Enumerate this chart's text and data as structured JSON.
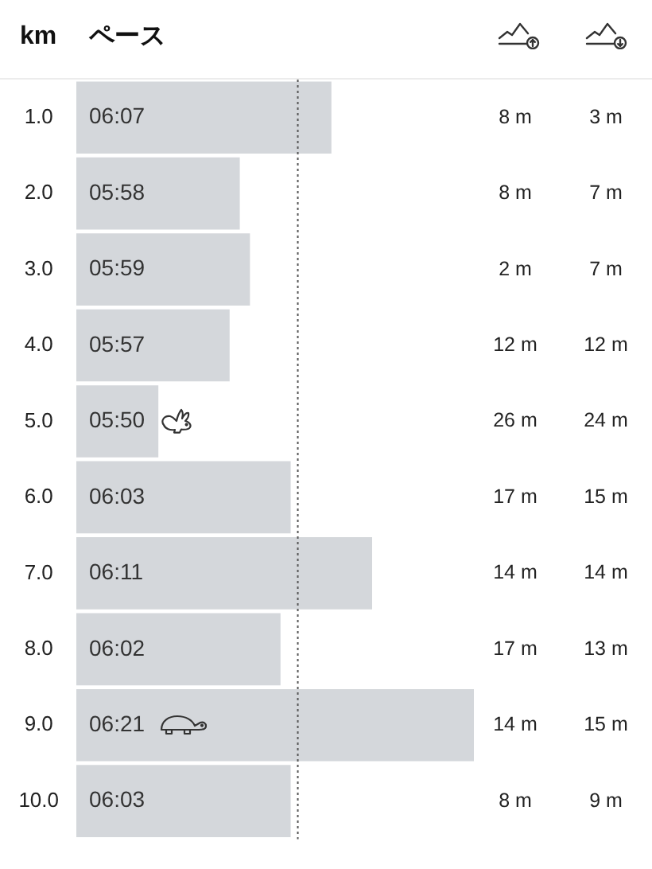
{
  "chart_data": {
    "type": "bar",
    "orientation": "horizontal",
    "xlabel": "ペース",
    "ylabel": "km",
    "categories": [
      "1.0",
      "2.0",
      "3.0",
      "4.0",
      "5.0",
      "6.0",
      "7.0",
      "8.0",
      "9.0",
      "10.0"
    ],
    "values": [
      367,
      358,
      359,
      357,
      350,
      363,
      371,
      362,
      381,
      363
    ],
    "value_labels": [
      "06:07",
      "05:58",
      "05:59",
      "05:57",
      "05:50",
      "06:03",
      "06:11",
      "06:02",
      "06:21",
      "06:03"
    ],
    "color": "#d4d7db",
    "tick_labels": "y",
    "ref_lines": [
      {
        "axis": "x",
        "value": 363.7,
        "color": "#555555",
        "line_style": "dotted"
      }
    ],
    "annotations": [
      "8 m",
      "3 m",
      "8 m",
      "7 m",
      "2 m",
      "7 m",
      "12 m",
      "12 m",
      "26 m",
      "24 m",
      "17 m",
      "15 m",
      "14 m",
      "14 m",
      "17 m",
      "13 m",
      "14 m",
      "15 m",
      "8 m",
      "9 m"
    ]
  }
}
